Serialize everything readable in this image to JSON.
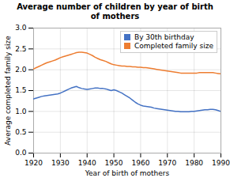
{
  "chart_data": {
    "type": "line",
    "title": "Average number of children by year of birth\nof mothers",
    "x_label": "Year of birth of mothers",
    "y_label": "Average completed family size",
    "x": [
      1920,
      1921,
      1922,
      1923,
      1924,
      1925,
      1926,
      1927,
      1928,
      1929,
      1930,
      1931,
      1932,
      1933,
      1934,
      1935,
      1936,
      1937,
      1938,
      1939,
      1940,
      1941,
      1942,
      1943,
      1944,
      1945,
      1946,
      1947,
      1948,
      1949,
      1950,
      1951,
      1952,
      1953,
      1954,
      1955,
      1956,
      1957,
      1958,
      1959,
      1960,
      1961,
      1962,
      1963,
      1964,
      1965,
      1966,
      1967,
      1968,
      1969,
      1970,
      1971,
      1972,
      1973,
      1974,
      1975,
      1976,
      1977,
      1978,
      1979,
      1980,
      1981,
      1982,
      1983,
      1984,
      1985,
      1986,
      1987,
      1988,
      1989,
      1990
    ],
    "series": [
      {
        "name": "By 30th birthday",
        "color": "#4472C4",
        "values": [
          1.3,
          1.32,
          1.34,
          1.36,
          1.37,
          1.38,
          1.39,
          1.4,
          1.41,
          1.42,
          1.44,
          1.47,
          1.5,
          1.53,
          1.56,
          1.58,
          1.6,
          1.57,
          1.55,
          1.54,
          1.53,
          1.54,
          1.55,
          1.56,
          1.56,
          1.55,
          1.55,
          1.54,
          1.52,
          1.5,
          1.52,
          1.5,
          1.47,
          1.44,
          1.4,
          1.36,
          1.32,
          1.27,
          1.22,
          1.18,
          1.15,
          1.13,
          1.12,
          1.11,
          1.1,
          1.08,
          1.07,
          1.06,
          1.05,
          1.04,
          1.03,
          1.02,
          1.01,
          1.0,
          1.0,
          0.99,
          0.99,
          0.99,
          0.99,
          1.0,
          1.0,
          1.01,
          1.02,
          1.03,
          1.04,
          1.04,
          1.05,
          1.05,
          1.04,
          1.02,
          1.0
        ]
      },
      {
        "name": "Completed family size",
        "color": "#ED7D31",
        "values": [
          2.02,
          2.05,
          2.08,
          2.11,
          2.14,
          2.17,
          2.19,
          2.21,
          2.23,
          2.26,
          2.29,
          2.31,
          2.33,
          2.35,
          2.37,
          2.39,
          2.41,
          2.42,
          2.42,
          2.41,
          2.4,
          2.37,
          2.34,
          2.3,
          2.27,
          2.24,
          2.22,
          2.2,
          2.17,
          2.14,
          2.12,
          2.11,
          2.1,
          2.09,
          2.09,
          2.08,
          2.08,
          2.07,
          2.07,
          2.06,
          2.06,
          2.05,
          2.05,
          2.04,
          2.03,
          2.02,
          2.01,
          2.0,
          1.99,
          1.98,
          1.97,
          1.96,
          1.95,
          1.94,
          1.93,
          1.92,
          1.92,
          1.92,
          1.92,
          1.92,
          1.92,
          1.92,
          1.93,
          1.93,
          1.93,
          1.93,
          1.93,
          1.93,
          1.92,
          1.91,
          1.9
        ]
      }
    ],
    "xlim": [
      1920,
      1990
    ],
    "ylim": [
      0,
      3
    ],
    "xticks": [
      1920,
      1930,
      1940,
      1950,
      1960,
      1970,
      1980,
      1990
    ],
    "yticks": [
      {
        "value": 0,
        "label": "0.0"
      },
      0.5,
      {
        "value": 1,
        "label": "1.0"
      },
      1.5,
      {
        "value": 2,
        "label": "2.0"
      },
      2.5,
      {
        "value": 3,
        "label": "3.0"
      }
    ],
    "grid": true,
    "legend": "upper right"
  }
}
